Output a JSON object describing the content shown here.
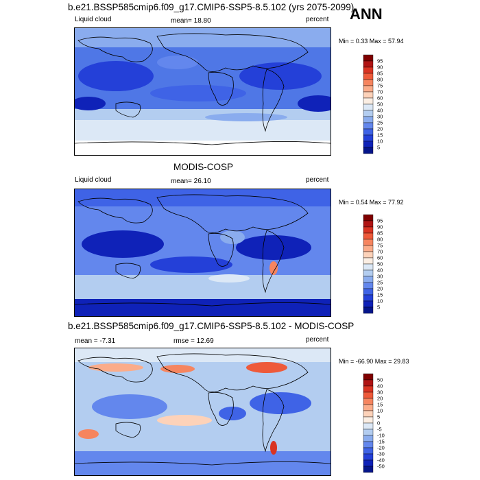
{
  "season": "ANN",
  "chart_data": [
    {
      "type": "heatmap",
      "title": "b.e21.BSSP585cmip6.f09_g17.CMIP6-SSP5-8.5.102 (yrs 2075-2099)",
      "variable": "Liquid cloud",
      "units": "percent",
      "mean_text": "mean=  18.80",
      "minmax_text": "Min =   0.33 Max =  57.94",
      "mean": 18.8,
      "min": 0.33,
      "max": 57.94,
      "colorbar_levels": [
        "95",
        "90",
        "85",
        "80",
        "75",
        "70",
        "60",
        "50",
        "40",
        "30",
        "25",
        "20",
        "15",
        "10",
        "5"
      ],
      "colorbar_colors": [
        "#7f0000",
        "#b01414",
        "#d93322",
        "#ee5a3a",
        "#f6855f",
        "#fbac8a",
        "#fdd2b9",
        "#fbeee3",
        "#dce8f6",
        "#b3cdf0",
        "#8aacee",
        "#6387ed",
        "#3f63e6",
        "#2440d8",
        "#0f22b8",
        "#05158a"
      ]
    },
    {
      "type": "heatmap",
      "title": "MODIS-COSP",
      "variable": "Liquid cloud",
      "units": "percent",
      "mean_text": "mean=  26.10",
      "minmax_text": "Min =   0.54 Max =  77.92",
      "mean": 26.1,
      "min": 0.54,
      "max": 77.92,
      "colorbar_levels": [
        "95",
        "90",
        "85",
        "80",
        "75",
        "70",
        "60",
        "50",
        "40",
        "30",
        "25",
        "20",
        "15",
        "10",
        "5"
      ],
      "colorbar_colors": [
        "#7f0000",
        "#b01414",
        "#d93322",
        "#ee5a3a",
        "#f6855f",
        "#fbac8a",
        "#fdd2b9",
        "#fbeee3",
        "#dce8f6",
        "#b3cdf0",
        "#8aacee",
        "#6387ed",
        "#3f63e6",
        "#2440d8",
        "#0f22b8",
        "#05158a"
      ]
    },
    {
      "type": "heatmap",
      "title": "b.e21.BSSP585cmip6.f09_g17.CMIP6-SSP5-8.5.102 - MODIS-COSP",
      "variable": "",
      "units": "percent",
      "mean_text": "mean =  -7.31",
      "rmse_text": "rmse =  12.69",
      "minmax_text": "Min = -66.90 Max =  29.83",
      "mean": -7.31,
      "rmse": 12.69,
      "min": -66.9,
      "max": 29.83,
      "colorbar_levels": [
        "50",
        "40",
        "30",
        "20",
        "15",
        "10",
        "5",
        "0",
        "-5",
        "-10",
        "-15",
        "-20",
        "-30",
        "-40",
        "-50"
      ],
      "colorbar_colors": [
        "#7f0000",
        "#b01414",
        "#d93322",
        "#ee5a3a",
        "#f6855f",
        "#fbac8a",
        "#fdd2b9",
        "#fbeee3",
        "#dce8f6",
        "#b3cdf0",
        "#8aacee",
        "#6387ed",
        "#3f63e6",
        "#2440d8",
        "#0f22b8",
        "#05158a"
      ]
    }
  ]
}
